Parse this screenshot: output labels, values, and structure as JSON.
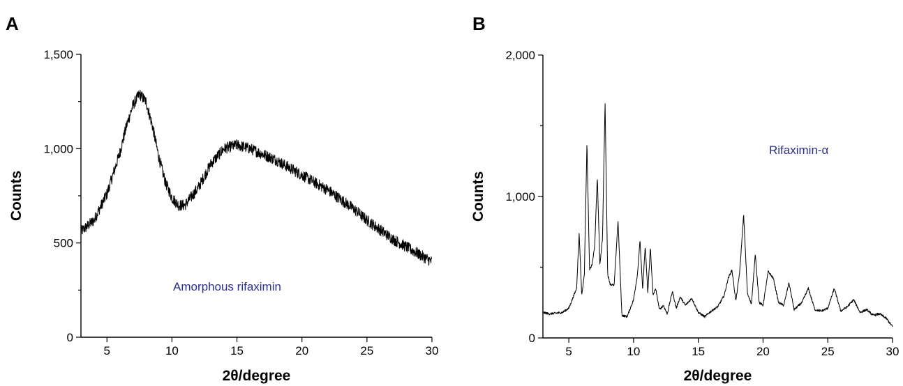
{
  "chart_data": [
    {
      "type": "line",
      "panel_label": "A",
      "xlabel": "2θ/degree",
      "ylabel": "Counts",
      "xlim": [
        3,
        30
      ],
      "ylim": [
        0,
        1500
      ],
      "xticks": [
        5,
        10,
        15,
        20,
        25,
        30
      ],
      "yticks": [
        0,
        500,
        1000,
        1500
      ],
      "ytick_labels": [
        "0",
        "500",
        "1,000",
        "1,500"
      ],
      "annotation": "Amorphous rifaximin",
      "annotation_color": "#2b2f8a",
      "line_color": "#000000",
      "noise_amplitude": 30,
      "series": [
        {
          "x": [
            3,
            4,
            5,
            6,
            6.5,
            7,
            7.5,
            8,
            8.5,
            9,
            9.5,
            10,
            10.5,
            11,
            12,
            13,
            14,
            15,
            16,
            17,
            18,
            19,
            20,
            21,
            22,
            23,
            24,
            25,
            26,
            27,
            28,
            29,
            30
          ],
          "values": [
            560,
            620,
            760,
            980,
            1120,
            1230,
            1290,
            1250,
            1120,
            950,
            820,
            740,
            700,
            700,
            790,
            920,
            1000,
            1020,
            1000,
            970,
            940,
            900,
            860,
            820,
            780,
            730,
            680,
            620,
            570,
            520,
            480,
            440,
            400
          ]
        }
      ]
    },
    {
      "type": "line",
      "panel_label": "B",
      "xlabel": "2θ/degree",
      "ylabel": "Counts",
      "xlim": [
        3,
        30
      ],
      "ylim": [
        0,
        2000
      ],
      "xticks": [
        5,
        10,
        15,
        20,
        25,
        30
      ],
      "yticks": [
        0,
        1000,
        2000
      ],
      "ytick_labels": [
        "0",
        "1,000",
        "2,000"
      ],
      "annotation": "Rifaximin-α",
      "annotation_color": "#2b2f8a",
      "line_color": "#000000",
      "noise_amplitude": 8,
      "series": [
        {
          "x": [
            3,
            3.5,
            4,
            4.5,
            5,
            5.3,
            5.6,
            5.8,
            6.0,
            6.2,
            6.4,
            6.6,
            6.8,
            7.0,
            7.2,
            7.4,
            7.6,
            7.8,
            8.0,
            8.2,
            8.5,
            8.8,
            9.1,
            9.5,
            10.0,
            10.3,
            10.5,
            10.7,
            10.9,
            11.1,
            11.3,
            11.5,
            11.7,
            12.0,
            12.3,
            12.6,
            13.0,
            13.3,
            13.6,
            14.0,
            14.5,
            15.0,
            15.5,
            16.0,
            16.5,
            17.0,
            17.3,
            17.6,
            17.9,
            18.2,
            18.5,
            18.8,
            19.1,
            19.4,
            19.7,
            20.0,
            20.4,
            20.8,
            21.2,
            21.6,
            22.0,
            22.4,
            23.0,
            23.5,
            24.0,
            24.5,
            25.0,
            25.5,
            26.0,
            26.5,
            27.0,
            27.5,
            28.0,
            28.5,
            29.0,
            29.5,
            30.0
          ],
          "values": [
            180,
            170,
            175,
            180,
            210,
            280,
            350,
            740,
            300,
            450,
            1380,
            480,
            520,
            650,
            1140,
            520,
            700,
            1670,
            450,
            380,
            370,
            830,
            160,
            150,
            270,
            450,
            690,
            340,
            650,
            320,
            640,
            300,
            350,
            200,
            230,
            170,
            330,
            210,
            290,
            230,
            280,
            180,
            150,
            190,
            220,
            300,
            420,
            480,
            260,
            470,
            870,
            310,
            240,
            590,
            250,
            230,
            470,
            420,
            250,
            230,
            390,
            200,
            250,
            350,
            200,
            190,
            210,
            350,
            190,
            220,
            270,
            180,
            200,
            160,
            170,
            140,
            80
          ]
        }
      ]
    }
  ]
}
